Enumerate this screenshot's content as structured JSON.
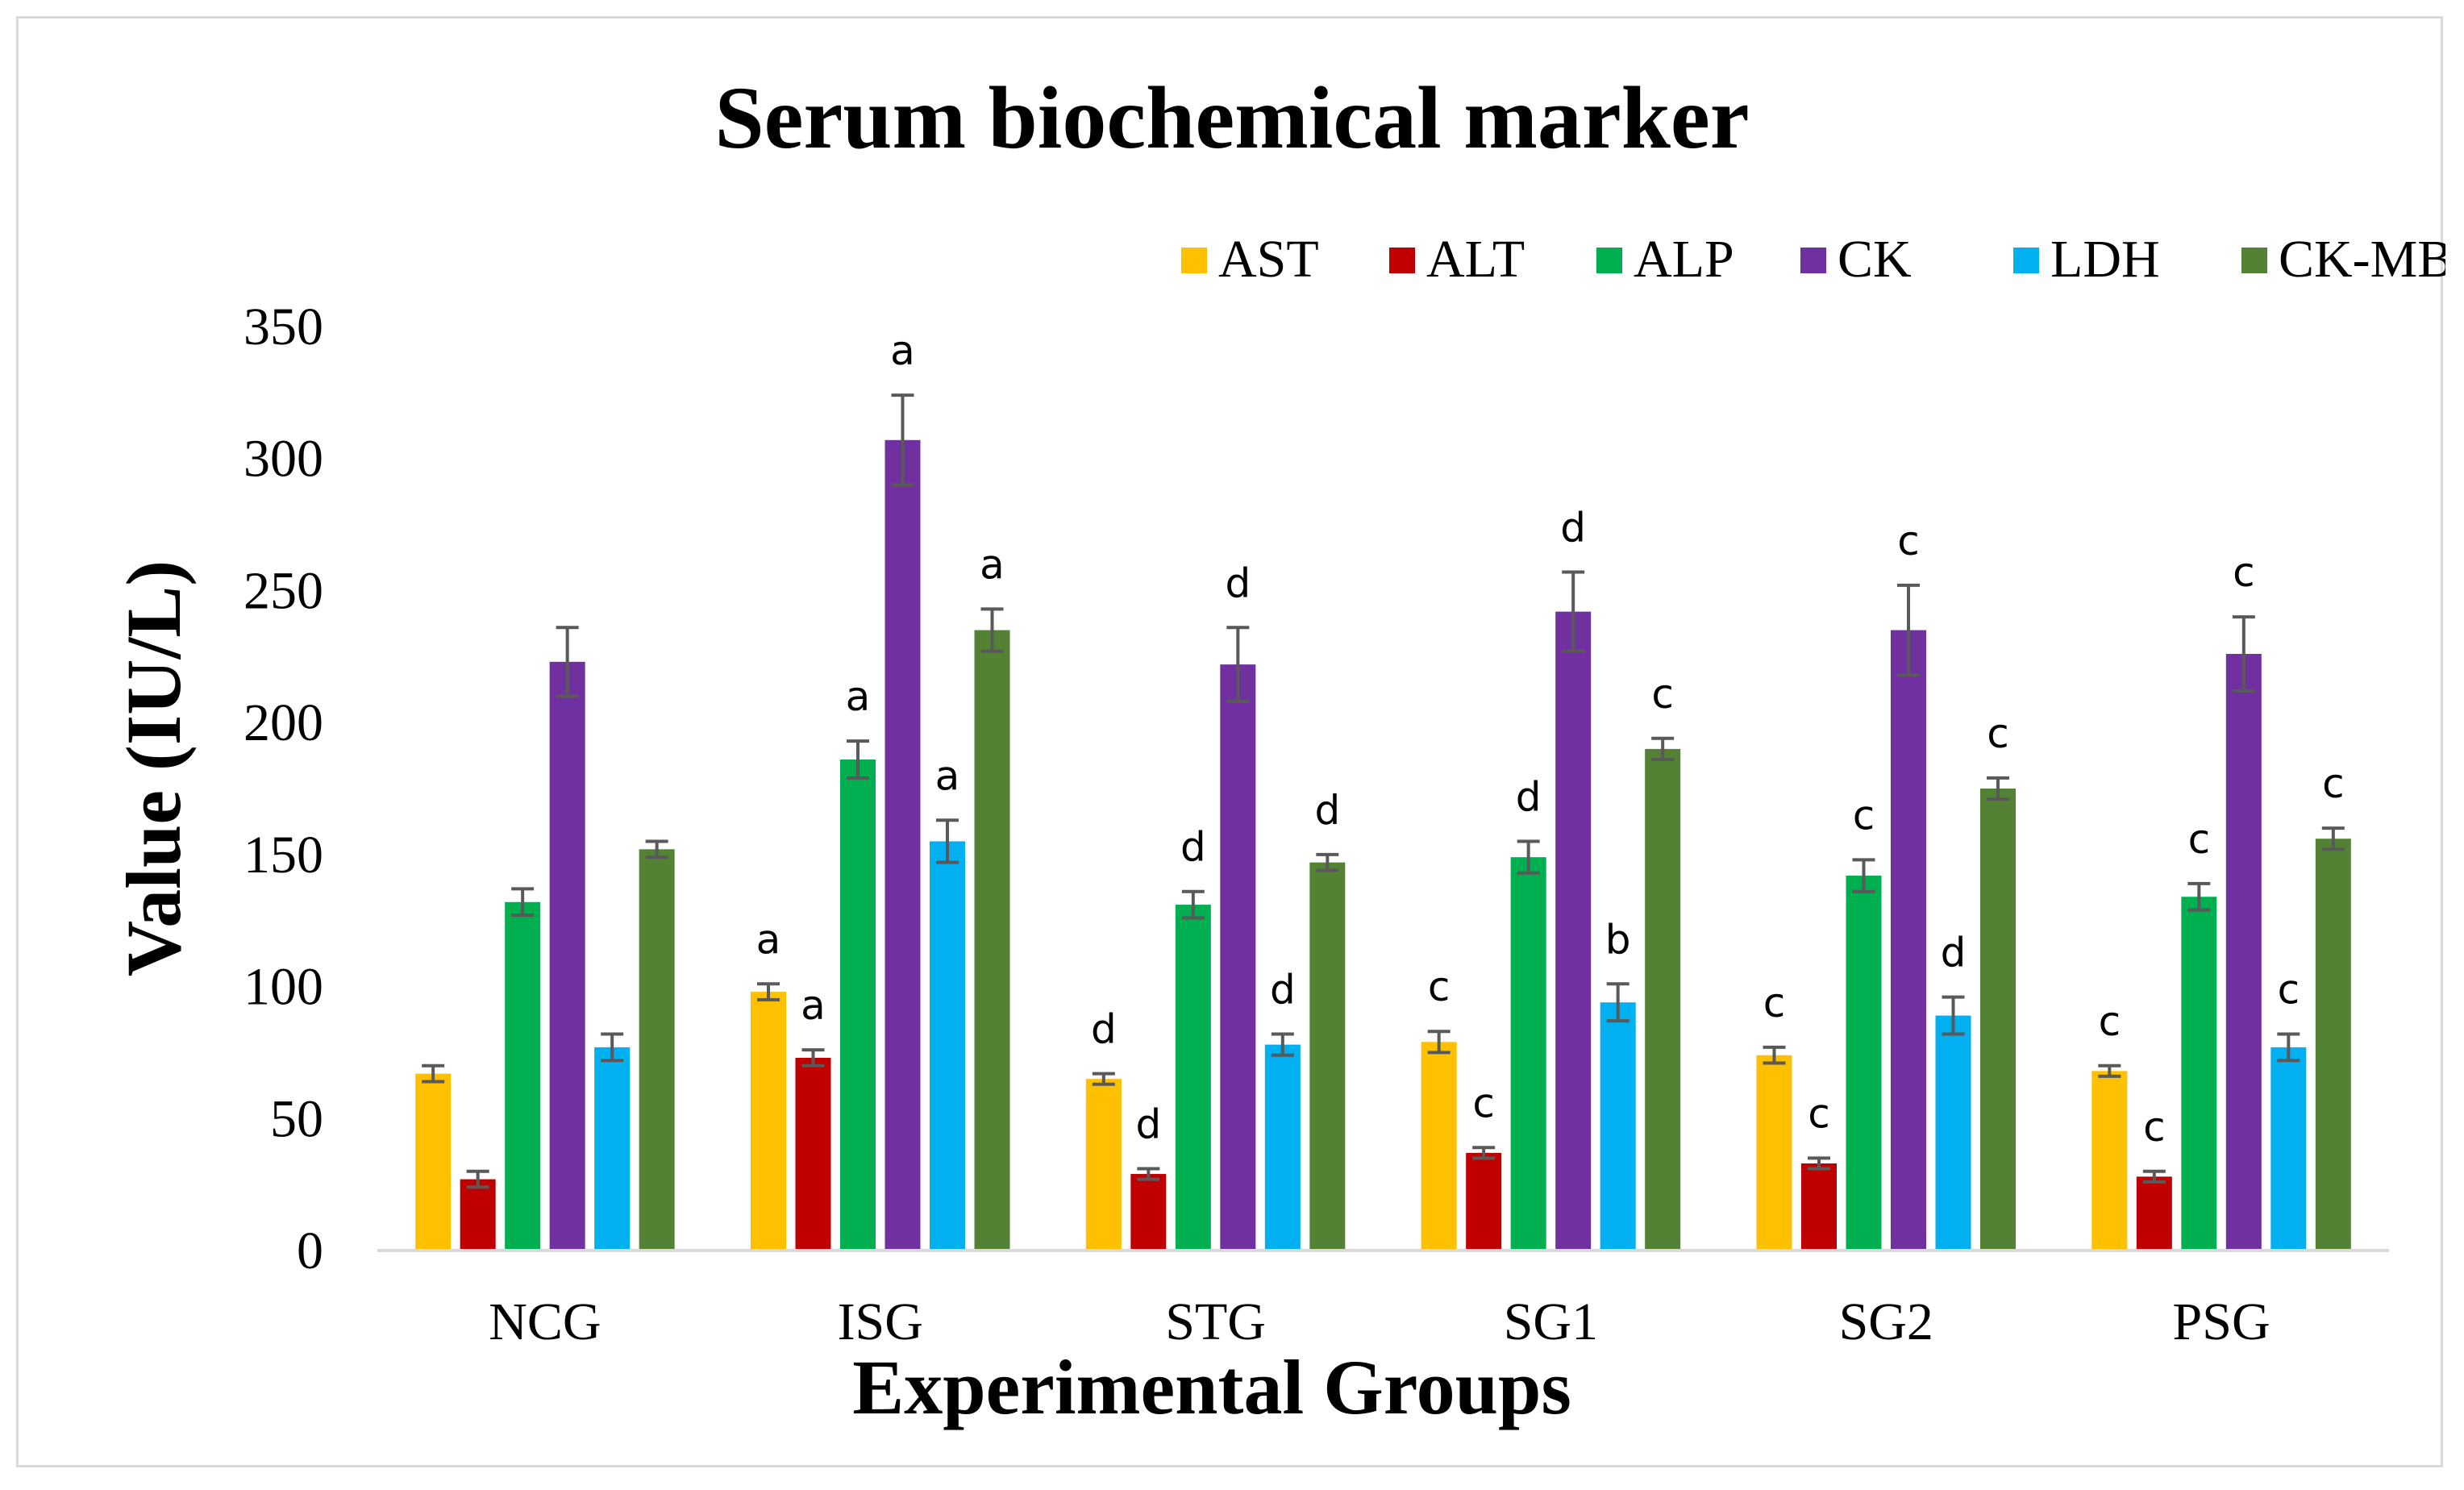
{
  "chart_data": {
    "type": "bar",
    "title": "Serum biochemical marker",
    "xlabel": "Experimental Groups",
    "ylabel": "Value (IU/L)",
    "ylim": [
      0,
      350
    ],
    "yticks": [
      0,
      50,
      100,
      150,
      200,
      250,
      300,
      350
    ],
    "grid": false,
    "legend_position": "top-right",
    "categories": [
      "NCG",
      "ISG",
      "STG",
      "SG1",
      "SG2",
      "PSG"
    ],
    "series": [
      {
        "name": "AST",
        "color": "#FFC000",
        "values": [
          67,
          98,
          65,
          79,
          74,
          68
        ],
        "errors": [
          3,
          3,
          2,
          4,
          3,
          2
        ],
        "labels": [
          "",
          "a",
          "d",
          "c",
          "c",
          "c"
        ]
      },
      {
        "name": "ALT",
        "color": "#C00000",
        "values": [
          27,
          73,
          29,
          37,
          33,
          28
        ],
        "errors": [
          3,
          3,
          2,
          2,
          2,
          2
        ],
        "labels": [
          "",
          "a",
          "d",
          "c",
          "c",
          "c"
        ]
      },
      {
        "name": "ALP",
        "color": "#00B050",
        "values": [
          132,
          186,
          131,
          149,
          142,
          134
        ],
        "errors": [
          5,
          7,
          5,
          6,
          6,
          5
        ],
        "labels": [
          "",
          "a",
          "d",
          "d",
          "c",
          "c"
        ]
      },
      {
        "name": "CK",
        "color": "#7030A0",
        "values": [
          223,
          307,
          222,
          242,
          235,
          226
        ],
        "errors": [
          13,
          17,
          14,
          15,
          17,
          14
        ],
        "labels": [
          "",
          "a",
          "d",
          "d",
          "c",
          "c"
        ]
      },
      {
        "name": "LDH",
        "color": "#00B0F0",
        "values": [
          77,
          155,
          78,
          94,
          89,
          77
        ],
        "errors": [
          5,
          8,
          4,
          7,
          7,
          5
        ],
        "labels": [
          "",
          "a",
          "d",
          "b",
          "d",
          "c"
        ]
      },
      {
        "name": "CK-MB",
        "color": "#548235",
        "values": [
          152,
          235,
          147,
          190,
          175,
          156
        ],
        "errors": [
          3,
          8,
          3,
          4,
          4,
          4
        ],
        "labels": [
          "",
          "a",
          "d",
          "c",
          "c",
          "c"
        ]
      }
    ]
  }
}
